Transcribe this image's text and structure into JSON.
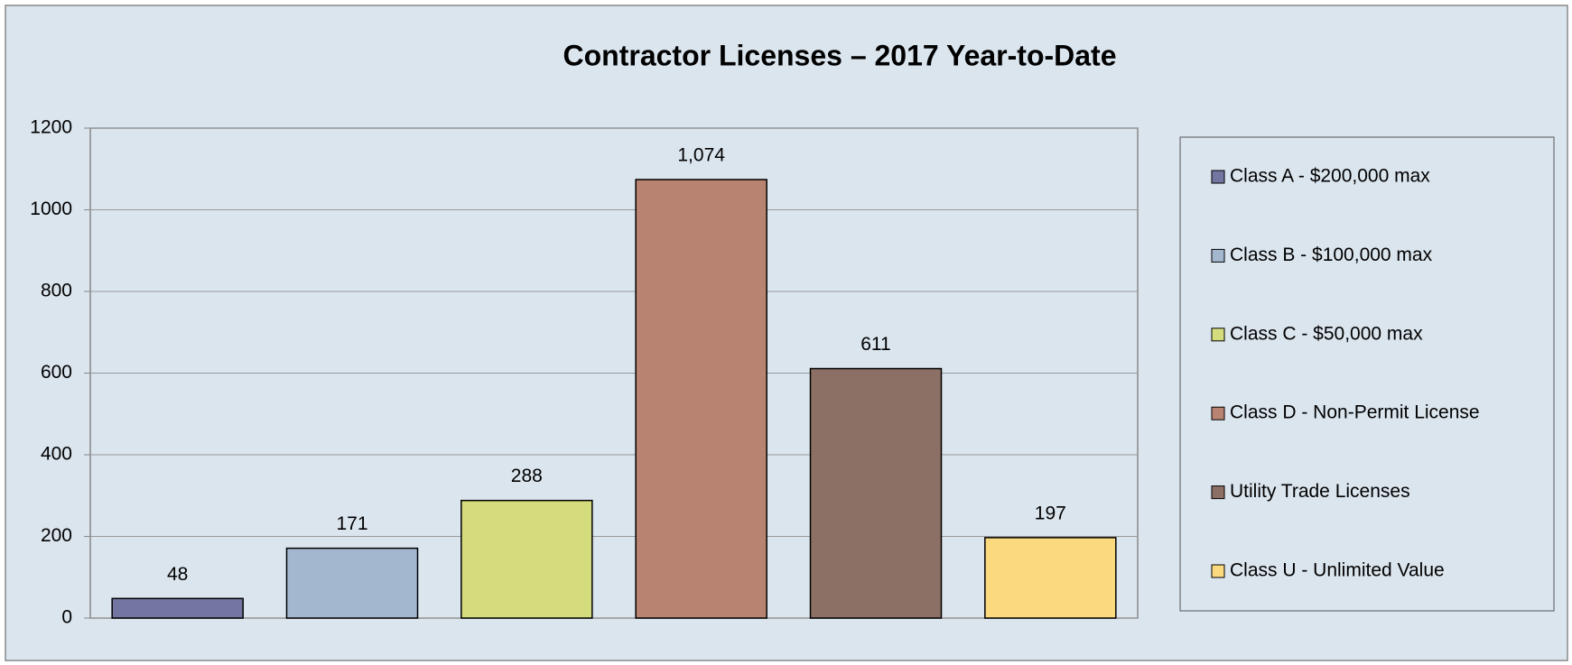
{
  "chart_data": {
    "type": "bar",
    "title": "Contractor Licenses – 2017 Year-to-Date",
    "series": [
      {
        "name": "Class A - $200,000 max",
        "color": "#7276a0",
        "values": [
          48
        ]
      },
      {
        "name": "Class B - $100,000 max",
        "color": "#a3b8cf",
        "values": [
          171
        ]
      },
      {
        "name": "Class C - $50,000 max",
        "color": "#d5dc7e",
        "values": [
          288
        ]
      },
      {
        "name": "Class D - Non-Permit License",
        "color": "#b88471",
        "values": [
          1074
        ],
        "value_labels": [
          "1,074"
        ]
      },
      {
        "name": "Utility Trade Licenses",
        "color": "#8d7065",
        "values": [
          611
        ]
      },
      {
        "name": "Class U - Unlimited Value",
        "color": "#fad97f",
        "values": [
          197
        ]
      }
    ],
    "ylim": [
      0,
      1200
    ],
    "yticks": [
      0,
      200,
      400,
      600,
      800,
      1000,
      1200
    ],
    "grid": true,
    "legend": "right"
  }
}
